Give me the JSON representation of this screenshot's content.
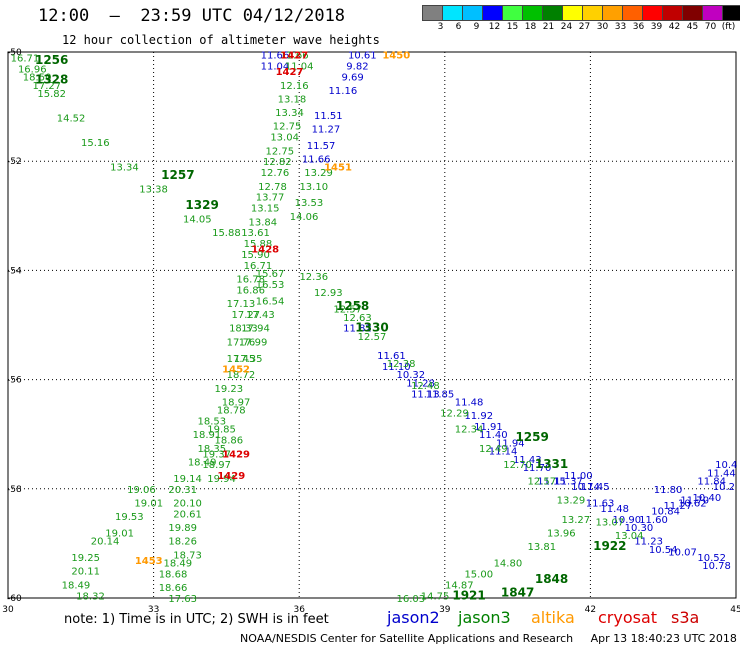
{
  "header": {
    "title": "12:00  –  23:59 UTC 04/12/2018",
    "subtitle": "12 hour collection of altimeter wave heights"
  },
  "color_scale": {
    "labels": [
      "3",
      "6",
      "9",
      "12",
      "15",
      "18",
      "21",
      "24",
      "27",
      "30",
      "33",
      "36",
      "39",
      "42",
      "45",
      "70",
      "(ft)"
    ],
    "colors": [
      "#808080",
      "#00e5ff",
      "#00bfff",
      "#0000ff",
      "#40ff40",
      "#00c000",
      "#008000",
      "#ffff00",
      "#ffd000",
      "#ffa000",
      "#ff6000",
      "#ff0000",
      "#c00000",
      "#800000",
      "#c000c0",
      "#000000"
    ]
  },
  "footer": {
    "note": "note:  1) Time is in UTC;  2) SWH is in feet",
    "legend": [
      {
        "label": "jason2",
        "color": "#0000cc"
      },
      {
        "label": "jason3",
        "color": "#008000"
      },
      {
        "label": "altika",
        "color": "#ff9900"
      },
      {
        "label": "cryosat",
        "color": "#dd0000"
      },
      {
        "label": "s3a",
        "color": "#cc0000"
      }
    ],
    "credit": "NOAA/NESDIS Center for Satellite Applications and Research     Apr 13 18:40:23 UTC 2018"
  },
  "chart_data": {
    "type": "scatter",
    "title": "12:00  –  23:59 UTC 04/12/2018",
    "subtitle": "12 hour collection of altimeter wave heights",
    "xlim": [
      30,
      45
    ],
    "ylim": [
      -60,
      -50
    ],
    "x_ticks": [
      30,
      33,
      36,
      39,
      42,
      45
    ],
    "y_ticks": [
      -50,
      -52,
      -54,
      -56,
      -58,
      -60
    ],
    "grid": true,
    "series": [
      {
        "name": "jason2",
        "color": "#0000cc",
        "points": [
          {
            "x": 35.5,
            "y": -50.05,
            "v": "11.66"
          },
          {
            "x": 35.5,
            "y": -50.25,
            "v": "11.04"
          },
          {
            "x": 37.3,
            "y": -50.05,
            "v": "10.61"
          },
          {
            "x": 37.2,
            "y": -50.25,
            "v": "9.82"
          },
          {
            "x": 37.1,
            "y": -50.45,
            "v": "9.69"
          },
          {
            "x": 36.9,
            "y": -50.7,
            "v": "11.16"
          },
          {
            "x": 36.6,
            "y": -51.15,
            "v": "11.51"
          },
          {
            "x": 36.55,
            "y": -51.4,
            "v": "11.27"
          },
          {
            "x": 36.45,
            "y": -51.7,
            "v": "11.57"
          },
          {
            "x": 36.35,
            "y": -51.95,
            "v": "11.66"
          },
          {
            "x": 37.2,
            "y": -55.05,
            "v": "11.82"
          },
          {
            "x": 37.9,
            "y": -55.55,
            "v": "11.61"
          },
          {
            "x": 38.0,
            "y": -55.75,
            "v": "11.10"
          },
          {
            "x": 38.3,
            "y": -55.9,
            "v": "10.32"
          },
          {
            "x": 38.5,
            "y": -56.05,
            "v": "11.28"
          },
          {
            "x": 38.6,
            "y": -56.25,
            "v": "11.13"
          },
          {
            "x": 38.9,
            "y": -56.25,
            "v": "11.85"
          },
          {
            "x": 39.5,
            "y": -56.4,
            "v": "11.48"
          },
          {
            "x": 39.7,
            "y": -56.65,
            "v": "11.92"
          },
          {
            "x": 39.9,
            "y": -56.85,
            "v": "11.91"
          },
          {
            "x": 40.0,
            "y": -57.0,
            "v": "11.40"
          },
          {
            "x": 40.35,
            "y": -57.15,
            "v": "11.94"
          },
          {
            "x": 40.2,
            "y": -57.3,
            "v": "11.14"
          },
          {
            "x": 40.7,
            "y": -57.45,
            "v": "11.43"
          },
          {
            "x": 40.9,
            "y": -57.6,
            "v": "11.70"
          },
          {
            "x": 41.2,
            "y": -57.85,
            "v": "11.15"
          },
          {
            "x": 41.55,
            "y": -57.85,
            "v": "11.37"
          },
          {
            "x": 41.75,
            "y": -57.75,
            "v": "11.00"
          },
          {
            "x": 41.9,
            "y": -57.95,
            "v": "10.74"
          },
          {
            "x": 42.1,
            "y": -57.95,
            "v": "11.45"
          },
          {
            "x": 42.2,
            "y": -58.25,
            "v": "11.63"
          },
          {
            "x": 42.5,
            "y": -58.35,
            "v": "11.48"
          },
          {
            "x": 42.75,
            "y": -58.55,
            "v": "10.90"
          },
          {
            "x": 43.0,
            "y": -58.7,
            "v": "10.30"
          },
          {
            "x": 43.2,
            "y": -58.95,
            "v": "11.23"
          },
          {
            "x": 43.5,
            "y": -59.1,
            "v": "10.54"
          },
          {
            "x": 43.9,
            "y": -59.15,
            "v": "10.07"
          },
          {
            "x": 44.5,
            "y": -59.25,
            "v": "10.52"
          },
          {
            "x": 44.6,
            "y": -59.4,
            "v": "10.78"
          },
          {
            "x": 44.8,
            "y": -57.55,
            "v": "10.4"
          },
          {
            "x": 44.7,
            "y": -57.7,
            "v": "11.44"
          },
          {
            "x": 44.5,
            "y": -57.85,
            "v": "11.84"
          },
          {
            "x": 44.75,
            "y": -57.95,
            "v": "10.2"
          },
          {
            "x": 44.4,
            "y": -58.15,
            "v": "10.40"
          },
          {
            "x": 44.1,
            "y": -58.25,
            "v": "10.62"
          },
          {
            "x": 43.6,
            "y": -58.0,
            "v": "11.80"
          },
          {
            "x": 43.8,
            "y": -58.3,
            "v": "11.27"
          },
          {
            "x": 44.15,
            "y": -58.2,
            "v": "11.70"
          },
          {
            "x": 43.55,
            "y": -58.4,
            "v": "10.84"
          },
          {
            "x": 43.3,
            "y": -58.55,
            "v": "11.60"
          }
        ]
      },
      {
        "name": "jason3",
        "color": "#1a9a1a",
        "points": [
          {
            "x": 30.35,
            "y": -50.1,
            "v": "16.71"
          },
          {
            "x": 30.5,
            "y": -50.3,
            "v": "16.96"
          },
          {
            "x": 30.6,
            "y": -50.45,
            "v": "18.50"
          },
          {
            "x": 30.8,
            "y": -50.6,
            "v": "17.27"
          },
          {
            "x": 30.9,
            "y": -50.75,
            "v": "15.82"
          },
          {
            "x": 31.3,
            "y": -51.2,
            "v": "14.52"
          },
          {
            "x": 31.8,
            "y": -51.65,
            "v": "15.16"
          },
          {
            "x": 32.4,
            "y": -52.1,
            "v": "13.34"
          },
          {
            "x": 33.0,
            "y": -52.5,
            "v": "13.38"
          },
          {
            "x": 33.9,
            "y": -53.05,
            "v": "14.05"
          },
          {
            "x": 34.5,
            "y": -53.3,
            "v": "15.88"
          },
          {
            "x": 35.9,
            "y": -50.05,
            "v": "11.66"
          },
          {
            "x": 36.0,
            "y": -50.25,
            "v": "11.04"
          },
          {
            "x": 35.9,
            "y": -50.6,
            "v": "12.16"
          },
          {
            "x": 35.85,
            "y": -50.85,
            "v": "13.18"
          },
          {
            "x": 35.8,
            "y": -51.1,
            "v": "13.34"
          },
          {
            "x": 35.75,
            "y": -51.35,
            "v": "12.75"
          },
          {
            "x": 35.7,
            "y": -51.55,
            "v": "13.04"
          },
          {
            "x": 35.6,
            "y": -51.8,
            "v": "12.75"
          },
          {
            "x": 35.55,
            "y": -52.0,
            "v": "12.82"
          },
          {
            "x": 35.5,
            "y": -52.2,
            "v": "12.76"
          },
          {
            "x": 35.45,
            "y": -52.45,
            "v": "12.78"
          },
          {
            "x": 35.4,
            "y": -52.65,
            "v": "13.77"
          },
          {
            "x": 35.3,
            "y": -52.85,
            "v": "13.15"
          },
          {
            "x": 35.25,
            "y": -53.1,
            "v": "13.84"
          },
          {
            "x": 35.1,
            "y": -53.3,
            "v": "13.61"
          },
          {
            "x": 36.4,
            "y": -52.2,
            "v": "13.29"
          },
          {
            "x": 36.3,
            "y": -52.45,
            "v": "13.10"
          },
          {
            "x": 36.2,
            "y": -52.75,
            "v": "13.53"
          },
          {
            "x": 36.1,
            "y": -53.0,
            "v": "14.06"
          },
          {
            "x": 35.15,
            "y": -53.5,
            "v": "15.88"
          },
          {
            "x": 35.1,
            "y": -53.7,
            "v": "15.90"
          },
          {
            "x": 35.15,
            "y": -53.9,
            "v": "16.71"
          },
          {
            "x": 35.4,
            "y": -54.05,
            "v": "15.67"
          },
          {
            "x": 35.0,
            "y": -54.15,
            "v": "16.78"
          },
          {
            "x": 35.4,
            "y": -54.25,
            "v": "16.53"
          },
          {
            "x": 35.0,
            "y": -54.35,
            "v": "16.86"
          },
          {
            "x": 35.4,
            "y": -54.55,
            "v": "16.54"
          },
          {
            "x": 34.8,
            "y": -54.6,
            "v": "17.13"
          },
          {
            "x": 34.9,
            "y": -54.8,
            "v": "17.27"
          },
          {
            "x": 35.2,
            "y": -54.8,
            "v": "17.43"
          },
          {
            "x": 34.85,
            "y": -55.05,
            "v": "18.33"
          },
          {
            "x": 35.1,
            "y": -55.05,
            "v": "17.94"
          },
          {
            "x": 34.8,
            "y": -55.3,
            "v": "17.76"
          },
          {
            "x": 35.05,
            "y": -55.3,
            "v": "17.99"
          },
          {
            "x": 34.8,
            "y": -55.6,
            "v": "17.45"
          },
          {
            "x": 34.95,
            "y": -55.6,
            "v": "17.35"
          },
          {
            "x": 34.8,
            "y": -55.9,
            "v": "18.72"
          },
          {
            "x": 34.55,
            "y": -56.15,
            "v": "19.23"
          },
          {
            "x": 34.7,
            "y": -56.4,
            "v": "18.97"
          },
          {
            "x": 34.6,
            "y": -56.55,
            "v": "18.78"
          },
          {
            "x": 34.2,
            "y": -56.75,
            "v": "18.53"
          },
          {
            "x": 34.4,
            "y": -56.9,
            "v": "19.85"
          },
          {
            "x": 34.1,
            "y": -57.0,
            "v": "18.91"
          },
          {
            "x": 34.55,
            "y": -57.1,
            "v": "18.86"
          },
          {
            "x": 34.2,
            "y": -57.25,
            "v": "18.35"
          },
          {
            "x": 34.3,
            "y": -57.35,
            "v": "19.37"
          },
          {
            "x": 34.0,
            "y": -57.5,
            "v": "18.49"
          },
          {
            "x": 34.3,
            "y": -57.55,
            "v": "18.97"
          },
          {
            "x": 33.7,
            "y": -57.8,
            "v": "19.14"
          },
          {
            "x": 34.4,
            "y": -57.8,
            "v": "19.94"
          },
          {
            "x": 33.6,
            "y": -58.0,
            "v": "20.31"
          },
          {
            "x": 32.75,
            "y": -58.0,
            "v": "19.06"
          },
          {
            "x": 32.9,
            "y": -58.25,
            "v": "19.01"
          },
          {
            "x": 33.7,
            "y": -58.25,
            "v": "20.10"
          },
          {
            "x": 32.5,
            "y": -58.5,
            "v": "19.53"
          },
          {
            "x": 33.7,
            "y": -58.45,
            "v": "20.61"
          },
          {
            "x": 32.3,
            "y": -58.8,
            "v": "19.01"
          },
          {
            "x": 33.6,
            "y": -58.7,
            "v": "19.89"
          },
          {
            "x": 32.0,
            "y": -58.95,
            "v": "20.14"
          },
          {
            "x": 33.6,
            "y": -58.95,
            "v": "18.26"
          },
          {
            "x": 33.7,
            "y": -59.2,
            "v": "18.73"
          },
          {
            "x": 31.6,
            "y": -59.25,
            "v": "19.25"
          },
          {
            "x": 33.5,
            "y": -59.35,
            "v": "18.49"
          },
          {
            "x": 31.6,
            "y": -59.5,
            "v": "20.11"
          },
          {
            "x": 33.4,
            "y": -59.55,
            "v": "18.68"
          },
          {
            "x": 31.4,
            "y": -59.75,
            "v": "18.49"
          },
          {
            "x": 33.4,
            "y": -59.8,
            "v": "18.66"
          },
          {
            "x": 31.7,
            "y": -59.95,
            "v": "18.32"
          },
          {
            "x": 33.6,
            "y": -60.0,
            "v": "17.63"
          },
          {
            "x": 36.3,
            "y": -54.1,
            "v": "12.36"
          },
          {
            "x": 36.6,
            "y": -54.4,
            "v": "12.93"
          },
          {
            "x": 37.0,
            "y": -54.7,
            "v": "12.57"
          },
          {
            "x": 37.2,
            "y": -54.85,
            "v": "12.63"
          },
          {
            "x": 37.5,
            "y": -55.2,
            "v": "12.57"
          },
          {
            "x": 38.1,
            "y": -55.7,
            "v": "12.38"
          },
          {
            "x": 38.6,
            "y": -56.1,
            "v": "12.48"
          },
          {
            "x": 39.2,
            "y": -56.6,
            "v": "12.29"
          },
          {
            "x": 39.5,
            "y": -56.9,
            "v": "12.34"
          },
          {
            "x": 40.0,
            "y": -57.25,
            "v": "12.49"
          },
          {
            "x": 40.5,
            "y": -57.55,
            "v": "12.70"
          },
          {
            "x": 41.0,
            "y": -57.85,
            "v": "12.57"
          },
          {
            "x": 41.6,
            "y": -58.2,
            "v": "13.29"
          },
          {
            "x": 42.4,
            "y": -58.6,
            "v": "13.07"
          },
          {
            "x": 42.8,
            "y": -58.85,
            "v": "13.04"
          },
          {
            "x": 41.4,
            "y": -58.8,
            "v": "13.96"
          },
          {
            "x": 41.0,
            "y": -59.05,
            "v": "13.81"
          },
          {
            "x": 40.3,
            "y": -59.35,
            "v": "14.80"
          },
          {
            "x": 39.7,
            "y": -59.55,
            "v": "15.00"
          },
          {
            "x": 39.3,
            "y": -59.75,
            "v": "14.87"
          },
          {
            "x": 38.8,
            "y": -59.95,
            "v": "14.75"
          },
          {
            "x": 38.3,
            "y": -60.0,
            "v": "16.03"
          },
          {
            "x": 41.7,
            "y": -58.55,
            "v": "13.27"
          }
        ]
      },
      {
        "name": "altika",
        "color": "#ff9900",
        "points": [
          {
            "x": 38.0,
            "y": -50.05,
            "v": "1450"
          },
          {
            "x": 36.8,
            "y": -52.1,
            "v": "1451"
          },
          {
            "x": 34.7,
            "y": -55.8,
            "v": "1452"
          },
          {
            "x": 32.9,
            "y": -59.3,
            "v": "1453"
          }
        ]
      },
      {
        "name": "cryosat",
        "color": "#dd0000",
        "points": [
          {
            "x": 35.9,
            "y": -50.05,
            "v": "1427"
          },
          {
            "x": 35.8,
            "y": -50.35,
            "v": "1427"
          },
          {
            "x": 35.3,
            "y": -53.6,
            "v": "1428"
          },
          {
            "x": 34.7,
            "y": -57.35,
            "v": "1429"
          },
          {
            "x": 34.6,
            "y": -57.75,
            "v": "1429"
          }
        ]
      },
      {
        "name": "time_labels",
        "color": "#006600",
        "points": [
          {
            "x": 30.9,
            "y": -50.15,
            "v": "1256"
          },
          {
            "x": 30.9,
            "y": -50.5,
            "v": "1328"
          },
          {
            "x": 33.5,
            "y": -52.25,
            "v": "1257"
          },
          {
            "x": 34.0,
            "y": -52.8,
            "v": "1329"
          },
          {
            "x": 37.1,
            "y": -54.65,
            "v": "1258"
          },
          {
            "x": 37.5,
            "y": -55.05,
            "v": "1330"
          },
          {
            "x": 40.8,
            "y": -57.05,
            "v": "1259"
          },
          {
            "x": 41.2,
            "y": -57.55,
            "v": "1331"
          },
          {
            "x": 42.4,
            "y": -59.05,
            "v": "1922"
          },
          {
            "x": 41.2,
            "y": -59.65,
            "v": "1848"
          },
          {
            "x": 39.5,
            "y": -59.95,
            "v": "1921"
          },
          {
            "x": 40.5,
            "y": -59.9,
            "v": "1847"
          }
        ]
      }
    ]
  }
}
